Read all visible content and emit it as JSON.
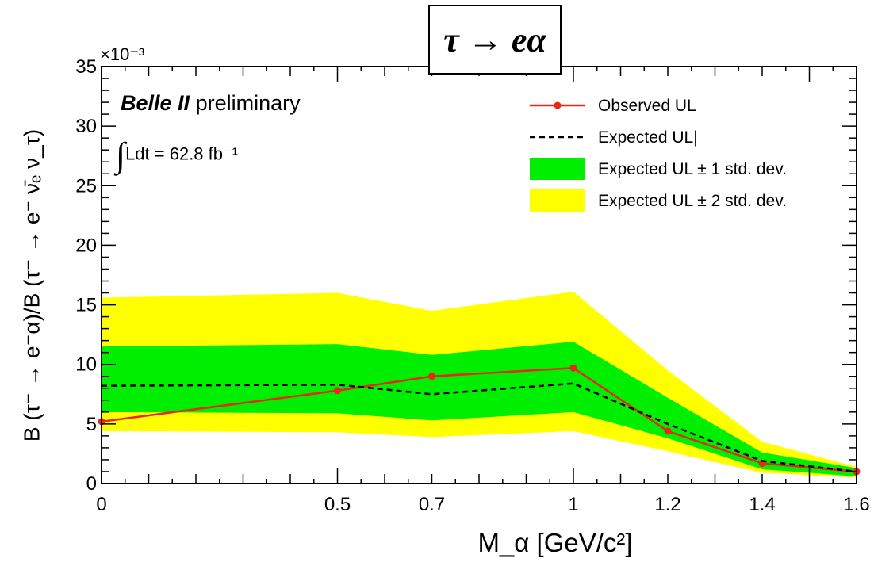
{
  "chart_data": {
    "type": "line",
    "title": "τ → eα",
    "experiment": "Belle II",
    "experiment_suffix": "preliminary",
    "luminosity_label": "Ldt = 62.8 fb⁻¹",
    "xlabel": "M_α [GeV/c²]",
    "ylabel": "B (τ⁻ → e⁻α)/B (τ⁻ → e⁻ ν̄ₑ ν_τ)",
    "y_exponent_label": "×10⁻³",
    "xlim": [
      0,
      1.6
    ],
    "ylim": [
      0,
      35
    ],
    "x_ticks": [
      0,
      0.5,
      0.7,
      1,
      1.2,
      1.4,
      1.6
    ],
    "x_tick_labels": [
      "0",
      "0.5",
      "0.7",
      "1",
      "1.2",
      "1.4",
      "1.6"
    ],
    "y_ticks": [
      0,
      5,
      10,
      15,
      20,
      25,
      30,
      35
    ],
    "y_tick_labels": [
      "0",
      "5",
      "10",
      "15",
      "20",
      "25",
      "30",
      "35"
    ],
    "x": [
      0,
      0.5,
      0.7,
      1.0,
      1.2,
      1.4,
      1.6
    ],
    "series": [
      {
        "name": "Observed UL",
        "values": [
          5.2,
          7.8,
          9.0,
          9.7,
          4.4,
          1.7,
          1.0
        ],
        "color": "#e8261a",
        "style": "solid-markers"
      },
      {
        "name": "Expected UL",
        "values": [
          8.2,
          8.3,
          7.5,
          8.4,
          5.0,
          1.9,
          1.0
        ],
        "color": "#000000",
        "style": "dashed"
      }
    ],
    "bands": [
      {
        "name": "Expected UL ± 2 std. dev.",
        "color": "#ffff00",
        "low": [
          4.4,
          4.3,
          3.9,
          4.4,
          2.7,
          0.9,
          0.5
        ],
        "high": [
          15.6,
          16.0,
          14.5,
          16.1,
          9.5,
          3.5,
          1.4
        ]
      },
      {
        "name": "Expected UL ± 1 std. dev.",
        "color": "#00ee00",
        "low": [
          6.0,
          5.9,
          5.3,
          6.0,
          3.8,
          1.2,
          0.6
        ],
        "high": [
          11.5,
          11.7,
          10.8,
          11.9,
          7.2,
          2.6,
          1.3
        ]
      }
    ],
    "legend": [
      {
        "label": "Observed UL",
        "kind": "line-marker",
        "color": "#e8261a"
      },
      {
        "label": "Expected UL|",
        "kind": "dashed",
        "color": "#000000"
      },
      {
        "label": "Expected UL ± 1 std. dev.",
        "kind": "box",
        "color": "#00ee00"
      },
      {
        "label": "Expected UL ± 2 std. dev.",
        "kind": "box",
        "color": "#ffff00"
      }
    ],
    "legend_position": "top-right",
    "grid": false
  }
}
